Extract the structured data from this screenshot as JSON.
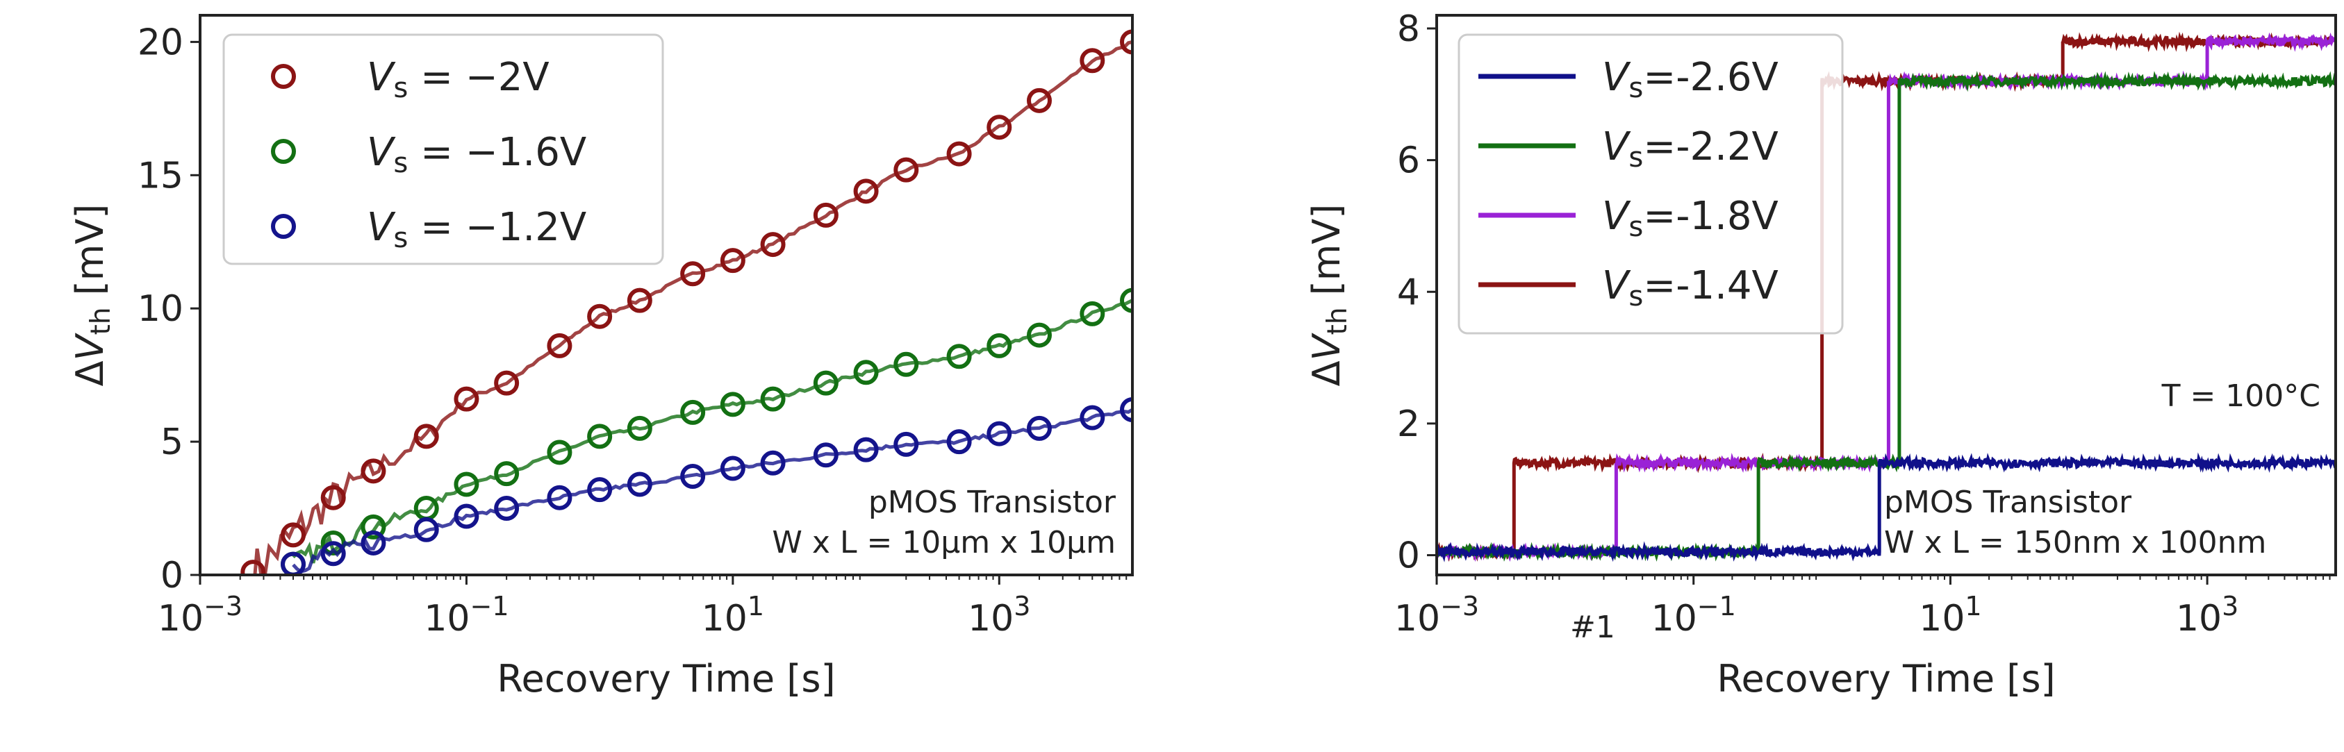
{
  "chart_data": [
    {
      "type": "scatter",
      "title": "",
      "xlabel": "Recovery Time  [s]",
      "ylabel": "ΔV_th  [mV]",
      "xscale": "log",
      "xlim": [
        0.001,
        10000
      ],
      "ylim": [
        0,
        21
      ],
      "x_ticks": [
        0.001,
        0.1,
        10,
        1000
      ],
      "x_tick_labels": [
        "10^-3",
        "10^-1",
        "10^1",
        "10^3"
      ],
      "y_ticks": [
        0,
        5,
        10,
        15,
        20
      ],
      "y_tick_labels": [
        "0",
        "5",
        "10",
        "15",
        "20"
      ],
      "legend_position": "top-left",
      "annotations": [
        "pMOS Transistor",
        "W x L = 10µm x 10µm"
      ],
      "series": [
        {
          "name": "V_s = −2V",
          "color": "#8b1414",
          "x": [
            0.0025,
            0.005,
            0.01,
            0.02,
            0.05,
            0.1,
            0.2,
            0.5,
            1,
            2,
            5,
            10,
            20,
            50,
            100,
            200,
            500,
            1000,
            2000,
            5000,
            10000
          ],
          "y": [
            0.1,
            1.5,
            2.9,
            3.9,
            5.2,
            6.6,
            7.2,
            8.6,
            9.7,
            10.3,
            11.3,
            11.8,
            12.4,
            13.5,
            14.4,
            15.2,
            15.8,
            16.8,
            17.8,
            19.3,
            20.0
          ]
        },
        {
          "name": "V_s = −1.6V",
          "color": "#137013",
          "x": [
            0.005,
            0.01,
            0.02,
            0.05,
            0.1,
            0.2,
            0.5,
            1,
            2,
            5,
            10,
            20,
            50,
            100,
            200,
            500,
            1000,
            2000,
            5000,
            10000
          ],
          "y": [
            0.4,
            1.2,
            1.8,
            2.5,
            3.4,
            3.8,
            4.6,
            5.2,
            5.5,
            6.1,
            6.4,
            6.6,
            7.2,
            7.6,
            7.9,
            8.2,
            8.6,
            9.0,
            9.8,
            10.3
          ]
        },
        {
          "name": "V_s = −1.2V",
          "color": "#14148c",
          "x": [
            0.005,
            0.01,
            0.02,
            0.05,
            0.1,
            0.2,
            0.5,
            1,
            2,
            5,
            10,
            20,
            50,
            100,
            200,
            500,
            1000,
            2000,
            5000,
            10000
          ],
          "y": [
            0.4,
            0.8,
            1.2,
            1.7,
            2.2,
            2.5,
            2.9,
            3.2,
            3.4,
            3.7,
            4.0,
            4.2,
            4.5,
            4.7,
            4.9,
            5.0,
            5.3,
            5.5,
            5.9,
            6.2
          ]
        }
      ]
    },
    {
      "type": "line",
      "title": "",
      "xlabel": "Recovery Time  [s]",
      "ylabel": "ΔV_th  [mV]",
      "xscale": "log",
      "xlim": [
        0.001,
        10000
      ],
      "ylim": [
        -0.3,
        8.2
      ],
      "x_ticks": [
        0.001,
        0.1,
        10,
        1000
      ],
      "x_tick_labels": [
        "10^-3",
        "10^-1",
        "10^1",
        "10^3"
      ],
      "y_ticks": [
        0,
        2,
        4,
        6,
        8
      ],
      "y_tick_labels": [
        "0",
        "2",
        "4",
        "6",
        "8"
      ],
      "legend_position": "top-left",
      "annotations": [
        "T = 100°C",
        "pMOS Transistor",
        "W x L = 150nm x 100nm",
        "#1"
      ],
      "series": [
        {
          "name": "V_s=-2.6V",
          "color": "#10108a",
          "steps": [
            {
              "x": 0.001,
              "y": 0.05
            },
            {
              "x": 2.8,
              "y": 1.4
            }
          ]
        },
        {
          "name": "V_s=-2.2V",
          "color": "#137013",
          "steps": [
            {
              "x": 0.001,
              "y": 0.05
            },
            {
              "x": 0.32,
              "y": 1.4
            },
            {
              "x": 4.0,
              "y": 7.2
            }
          ]
        },
        {
          "name": "V_s=-1.8V",
          "color": "#9a22d6",
          "steps": [
            {
              "x": 0.001,
              "y": 0.05
            },
            {
              "x": 0.025,
              "y": 1.4
            },
            {
              "x": 3.3,
              "y": 7.2
            },
            {
              "x": 1000,
              "y": 7.8
            }
          ]
        },
        {
          "name": "V_s=-1.4V",
          "color": "#8b1414",
          "steps": [
            {
              "x": 0.001,
              "y": 0.05
            },
            {
              "x": 0.004,
              "y": 1.4
            },
            {
              "x": 1.0,
              "y": 7.2
            },
            {
              "x": 75,
              "y": 7.8
            }
          ]
        }
      ]
    }
  ]
}
